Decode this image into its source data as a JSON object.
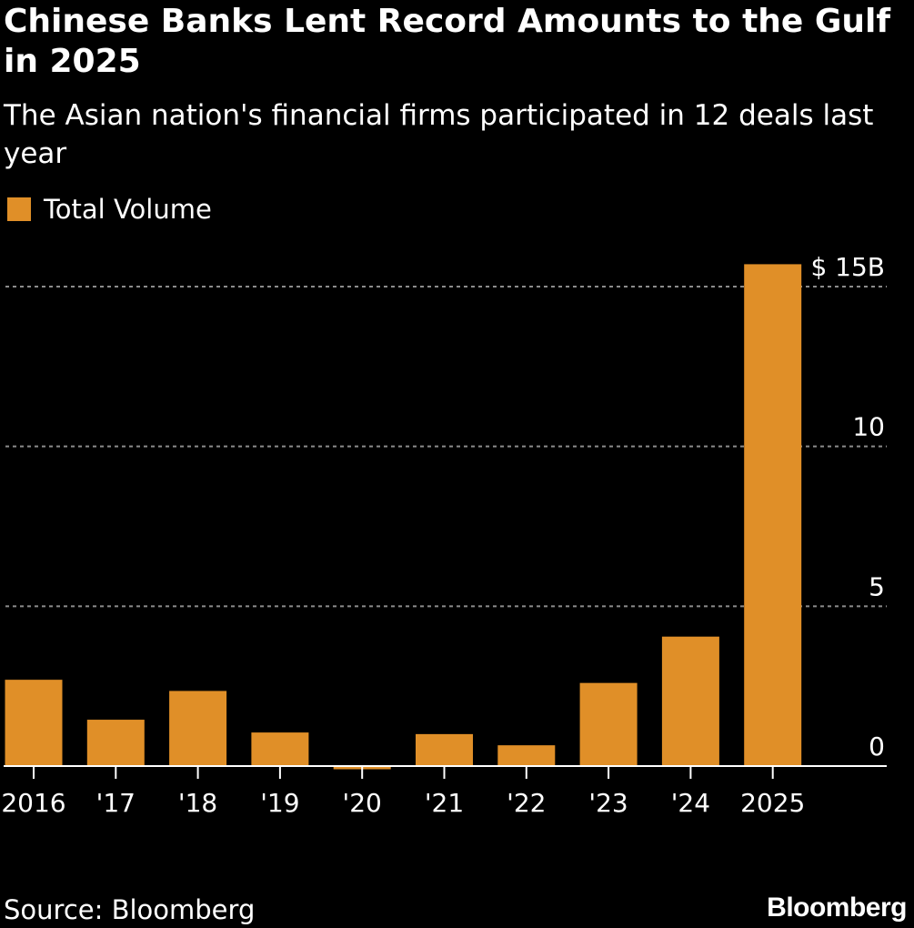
{
  "title": "Chinese Banks Lent Record Amounts to the Gulf in 2025",
  "subtitle": "The Asian nation's financial firms participated in 12 deals last year",
  "legend": {
    "label": "Total Volume"
  },
  "source": "Source: Bloomberg",
  "brand": "Bloomberg",
  "colors": {
    "background": "#000000",
    "bar": "#e08f28",
    "gridline": "#8c8c8c",
    "axis": "#ffffff",
    "text": "#ffffff"
  },
  "chart_data": {
    "type": "bar",
    "title": "Chinese Banks Lent Record Amounts to the Gulf in 2025",
    "subtitle": "The Asian nation's financial firms participated in 12 deals last year",
    "xlabel": "",
    "ylabel": "",
    "categories": [
      "2016",
      "'17",
      "'18",
      "'19",
      "'20",
      "'21",
      "'22",
      "'23",
      "'24",
      "2025"
    ],
    "series": [
      {
        "name": "Total Volume",
        "values": [
          2.7,
          1.45,
          2.35,
          1.05,
          -0.1,
          1.0,
          0.65,
          2.6,
          4.05,
          15.7
        ]
      }
    ],
    "ylim": [
      0,
      15
    ],
    "yticks": [
      0,
      5,
      10,
      15
    ],
    "ytick_labels": [
      "0",
      "5",
      "10",
      "$ 15B"
    ],
    "unit": "$ billions",
    "grid": true,
    "axis_side": "right",
    "legend_position": "top-left"
  }
}
